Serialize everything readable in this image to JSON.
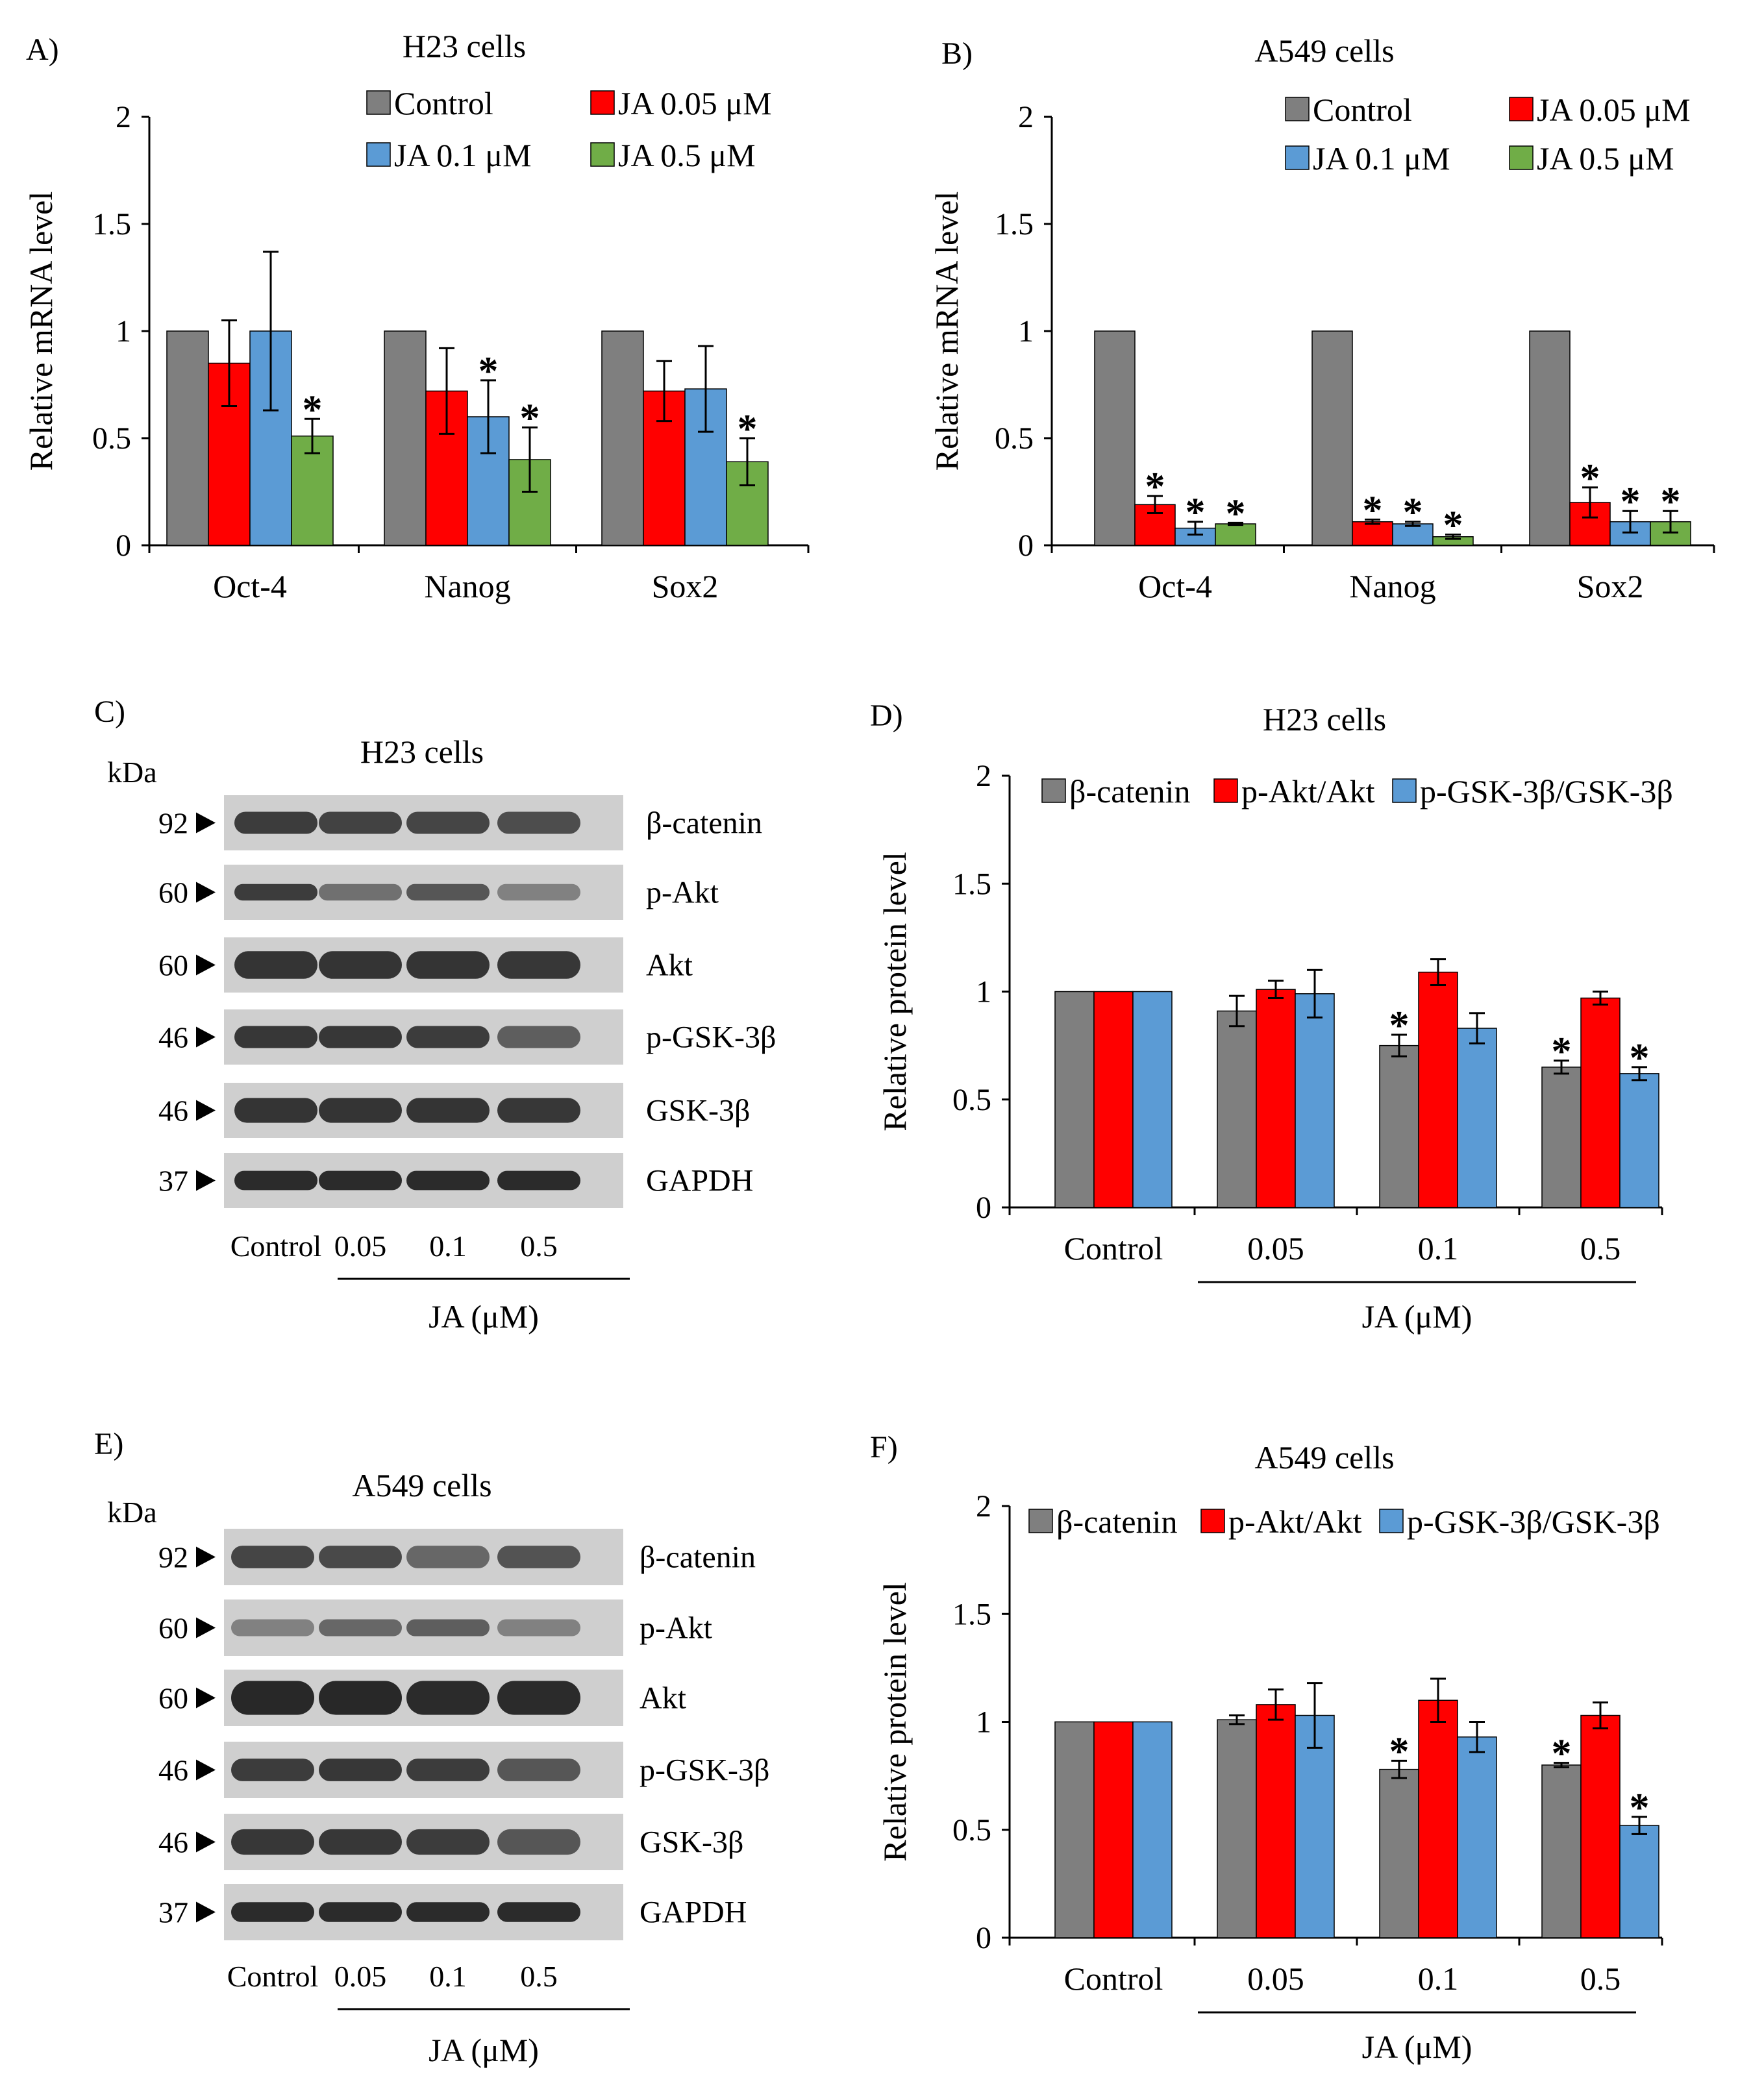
{
  "colors": {
    "gray": "#7f7f7f",
    "red": "#ff0000",
    "blue": "#5b9bd5",
    "green": "#70ad47",
    "axis": "#000000",
    "blot_bg": "#cfcfcf",
    "band": "#222222"
  },
  "chart_data": [
    {
      "panel": "A)",
      "type": "bar",
      "title": "H23 cells",
      "ylabel": "Relative mRNA level",
      "xlabel": "",
      "ylim": [
        0,
        2
      ],
      "yticks": [
        0,
        0.5,
        1,
        1.5,
        2
      ],
      "ytick_labels": [
        "0",
        "0.5",
        "1",
        "1.5",
        "2"
      ],
      "legend_position": "top",
      "legend_columns": 2,
      "categories": [
        "Oct-4",
        "Nanog",
        "Sox2"
      ],
      "series": [
        {
          "name": "Control",
          "color": "#7f7f7f",
          "values": [
            1,
            1,
            1
          ],
          "errors": [
            0,
            0,
            0
          ],
          "sig": [
            false,
            false,
            false
          ]
        },
        {
          "name": "JA 0.05 μM",
          "color": "#ff0000",
          "values": [
            0.85,
            0.72,
            0.72
          ],
          "errors": [
            0.2,
            0.2,
            0.14
          ],
          "sig": [
            false,
            false,
            false
          ]
        },
        {
          "name": "JA 0.1 μM",
          "color": "#5b9bd5",
          "values": [
            1.0,
            0.6,
            0.73
          ],
          "errors": [
            0.37,
            0.17,
            0.2
          ],
          "sig": [
            false,
            true,
            false
          ]
        },
        {
          "name": "JA 0.5 μM",
          "color": "#70ad47",
          "values": [
            0.51,
            0.4,
            0.39
          ],
          "errors": [
            0.08,
            0.15,
            0.11
          ],
          "sig": [
            true,
            true,
            true
          ]
        }
      ],
      "annotations": [
        "*"
      ]
    },
    {
      "panel": "B)",
      "type": "bar",
      "title": "A549 cells",
      "ylabel": "Relative mRNA level",
      "xlabel": "",
      "ylim": [
        0,
        2
      ],
      "yticks": [
        0,
        0.5,
        1,
        1.5,
        2
      ],
      "ytick_labels": [
        "0",
        "0.5",
        "1",
        "1.5",
        "2"
      ],
      "legend_position": "top",
      "legend_columns": 2,
      "categories": [
        "Oct-4",
        "Nanog",
        "Sox2"
      ],
      "series": [
        {
          "name": "Control",
          "color": "#7f7f7f",
          "values": [
            1,
            1,
            1
          ],
          "errors": [
            0,
            0,
            0
          ],
          "sig": [
            false,
            false,
            false
          ]
        },
        {
          "name": "JA 0.05 μM",
          "color": "#ff0000",
          "values": [
            0.19,
            0.11,
            0.2
          ],
          "errors": [
            0.04,
            0.01,
            0.07
          ],
          "sig": [
            true,
            true,
            true
          ]
        },
        {
          "name": "JA 0.1 μM",
          "color": "#5b9bd5",
          "values": [
            0.08,
            0.1,
            0.11
          ],
          "errors": [
            0.03,
            0.01,
            0.05
          ],
          "sig": [
            true,
            true,
            true
          ]
        },
        {
          "name": "JA 0.5 μM",
          "color": "#70ad47",
          "values": [
            0.1,
            0.04,
            0.11
          ],
          "errors": [
            0.005,
            0.01,
            0.05
          ],
          "sig": [
            true,
            true,
            true
          ]
        }
      ],
      "annotations": [
        "*"
      ]
    },
    {
      "panel": "D)",
      "type": "bar",
      "title": "H23 cells",
      "ylabel": "Relative protein level",
      "xlabel": "JA  (μM)",
      "ylim": [
        0,
        2
      ],
      "yticks": [
        0,
        0.5,
        1,
        1.5,
        2
      ],
      "ytick_labels": [
        "0",
        "0.5",
        "1",
        "1.5",
        "2"
      ],
      "legend_position": "top",
      "legend_columns": 3,
      "categories": [
        "Control",
        "0.05",
        "0.1",
        "0.5"
      ],
      "series": [
        {
          "name": "β-catenin",
          "color": "#7f7f7f",
          "values": [
            1,
            0.91,
            0.75,
            0.65
          ],
          "errors": [
            0,
            0.07,
            0.05,
            0.03
          ],
          "sig": [
            false,
            false,
            true,
            true
          ]
        },
        {
          "name": "p-Akt/Akt",
          "color": "#ff0000",
          "values": [
            1,
            1.01,
            1.09,
            0.97
          ],
          "errors": [
            0,
            0.04,
            0.06,
            0.03
          ],
          "sig": [
            false,
            false,
            false,
            false
          ]
        },
        {
          "name": "p-GSK-3β/GSK-3β",
          "color": "#5b9bd5",
          "values": [
            1,
            0.99,
            0.83,
            0.62
          ],
          "errors": [
            0,
            0.11,
            0.07,
            0.03
          ],
          "sig": [
            false,
            false,
            false,
            true
          ]
        }
      ],
      "annotations": [
        "*"
      ]
    },
    {
      "panel": "F)",
      "type": "bar",
      "title": "A549 cells",
      "ylabel": "Relative protein level",
      "xlabel": "JA  (μM)",
      "ylim": [
        0,
        2
      ],
      "yticks": [
        0,
        0.5,
        1,
        1.5,
        2
      ],
      "ytick_labels": [
        "0",
        "0.5",
        "1",
        "1.5",
        "2"
      ],
      "legend_position": "top",
      "legend_columns": 3,
      "categories": [
        "Control",
        "0.05",
        "0.1",
        "0.5"
      ],
      "series": [
        {
          "name": "β-catenin",
          "color": "#7f7f7f",
          "values": [
            1,
            1.01,
            0.78,
            0.8
          ],
          "errors": [
            0,
            0.02,
            0.04,
            0.01
          ],
          "sig": [
            false,
            false,
            true,
            true
          ]
        },
        {
          "name": "p-Akt/Akt",
          "color": "#ff0000",
          "values": [
            1,
            1.08,
            1.1,
            1.03
          ],
          "errors": [
            0,
            0.07,
            0.1,
            0.06
          ],
          "sig": [
            false,
            false,
            false,
            false
          ]
        },
        {
          "name": "p-GSK-3β/GSK-3β",
          "color": "#5b9bd5",
          "values": [
            1,
            1.03,
            0.93,
            0.52
          ],
          "errors": [
            0,
            0.15,
            0.07,
            0.04
          ],
          "sig": [
            false,
            false,
            false,
            true
          ]
        }
      ],
      "annotations": [
        "*"
      ]
    }
  ],
  "blots": [
    {
      "panel": "C)",
      "title": "H23 cells",
      "kda_label": "kDa",
      "lanes": [
        "Control",
        "0.05",
        "0.1",
        "0.5"
      ],
      "treatment_label": "JA  (μM)",
      "rows": [
        {
          "kda": "92",
          "label": "β-catenin",
          "intensity": [
            0.85,
            0.82,
            0.8,
            0.75
          ],
          "thickness": 0.4
        },
        {
          "kda": "60",
          "label": "p-Akt",
          "intensity": [
            0.85,
            0.55,
            0.7,
            0.45
          ],
          "thickness": 0.3
        },
        {
          "kda": "60",
          "label": "Akt",
          "intensity": [
            0.9,
            0.9,
            0.9,
            0.88
          ],
          "thickness": 0.5
        },
        {
          "kda": "46",
          "label": "p-GSK-3β",
          "intensity": [
            0.88,
            0.88,
            0.85,
            0.65
          ],
          "thickness": 0.4
        },
        {
          "kda": "46",
          "label": "GSK-3β",
          "intensity": [
            0.9,
            0.9,
            0.9,
            0.88
          ],
          "thickness": 0.45
        },
        {
          "kda": "37",
          "label": "GAPDH",
          "intensity": [
            0.95,
            0.95,
            0.95,
            0.95
          ],
          "thickness": 0.35
        }
      ]
    },
    {
      "panel": "E)",
      "title": "A549 cells",
      "kda_label": "kDa",
      "lanes": [
        "Control",
        "0.05",
        "0.1",
        "0.5"
      ],
      "treatment_label": "JA  (μM)",
      "rows": [
        {
          "kda": "92",
          "label": "β-catenin",
          "intensity": [
            0.8,
            0.78,
            0.6,
            0.72
          ],
          "thickness": 0.4
        },
        {
          "kda": "60",
          "label": "p-Akt",
          "intensity": [
            0.45,
            0.6,
            0.65,
            0.45
          ],
          "thickness": 0.3
        },
        {
          "kda": "60",
          "label": "Akt",
          "intensity": [
            0.97,
            0.97,
            0.95,
            0.95
          ],
          "thickness": 0.6
        },
        {
          "kda": "46",
          "label": "p-GSK-3β",
          "intensity": [
            0.85,
            0.88,
            0.85,
            0.7
          ],
          "thickness": 0.4
        },
        {
          "kda": "46",
          "label": "GSK-3β",
          "intensity": [
            0.88,
            0.88,
            0.85,
            0.7
          ],
          "thickness": 0.45
        },
        {
          "kda": "37",
          "label": "GAPDH",
          "intensity": [
            0.95,
            0.95,
            0.95,
            0.95
          ],
          "thickness": 0.35
        }
      ]
    }
  ]
}
